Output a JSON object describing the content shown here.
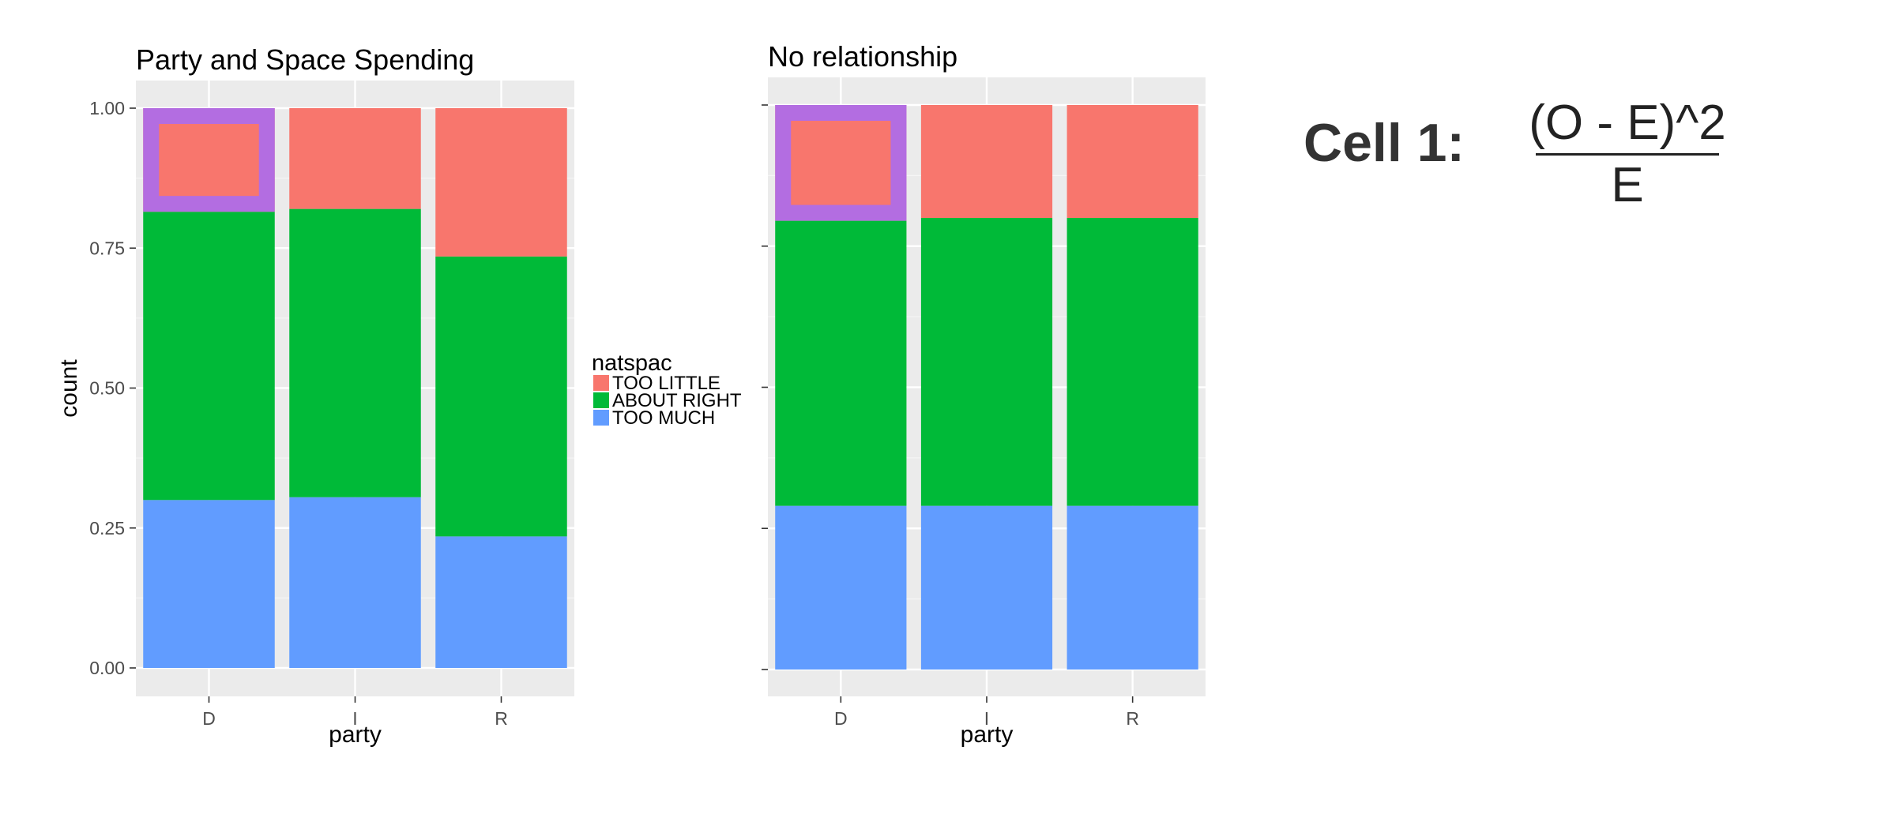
{
  "chart_data": [
    {
      "type": "bar",
      "stacked": true,
      "title": "Party and Space Spending",
      "xlabel": "party",
      "ylabel": "count",
      "categories": [
        "D",
        "I",
        "R"
      ],
      "ylim": [
        0,
        1
      ],
      "yticks": [
        "0.00",
        "0.25",
        "0.50",
        "0.75",
        "1.00"
      ],
      "grid": true,
      "series": [
        {
          "name": "TOO MUCH",
          "color": "#619CFF",
          "values": [
            0.3,
            0.305,
            0.235
          ]
        },
        {
          "name": "ABOUT RIGHT",
          "color": "#00BA38",
          "values": [
            0.515,
            0.515,
            0.5
          ]
        },
        {
          "name": "TOO LITTLE",
          "color": "#F8766D",
          "values": [
            0.185,
            0.18,
            0.265
          ]
        }
      ],
      "highlight": {
        "category": "D",
        "series": "TOO LITTLE",
        "color": "#B36DE1"
      }
    },
    {
      "type": "bar",
      "stacked": true,
      "title": "No relationship",
      "xlabel": "party",
      "ylabel": "",
      "categories": [
        "D",
        "I",
        "R"
      ],
      "ylim": [
        0,
        1
      ],
      "grid": true,
      "series": [
        {
          "name": "TOO MUCH",
          "color": "#619CFF",
          "values": [
            0.29,
            0.29,
            0.29
          ]
        },
        {
          "name": "ABOUT RIGHT",
          "color": "#00BA38",
          "values": [
            0.505,
            0.51,
            0.51
          ]
        },
        {
          "name": "TOO LITTLE",
          "color": "#F8766D",
          "values": [
            0.205,
            0.2,
            0.2
          ]
        }
      ],
      "highlight": {
        "category": "D",
        "series": "TOO LITTLE",
        "color": "#B36DE1"
      }
    }
  ],
  "legend": {
    "title": "natspac",
    "entries": [
      {
        "label": "TOO LITTLE",
        "color": "#F8766D"
      },
      {
        "label": "ABOUT RIGHT",
        "color": "#00BA38"
      },
      {
        "label": "TOO MUCH",
        "color": "#619CFF"
      }
    ]
  },
  "annotation": {
    "cell_label": "Cell 1:",
    "numerator": "(O - E)^2",
    "denominator": "E"
  }
}
